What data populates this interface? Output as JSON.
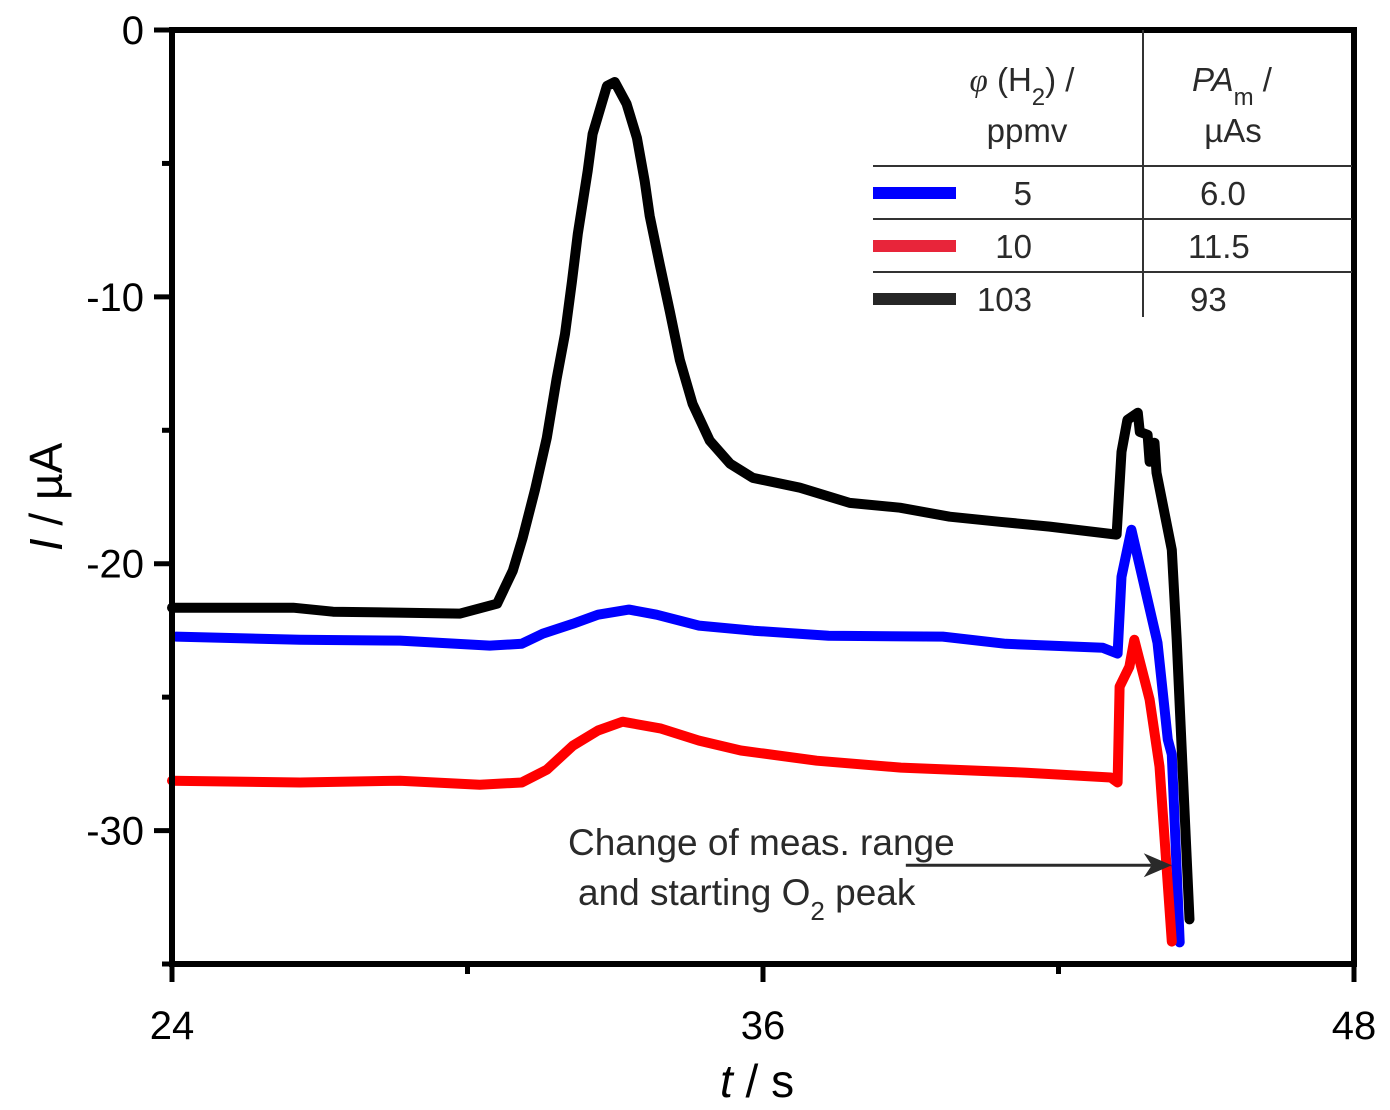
{
  "chart_data": {
    "type": "line",
    "title": "",
    "xlabel": {
      "var": "t",
      "unit": "s"
    },
    "ylabel": {
      "var": "I",
      "unit": "µA"
    },
    "xlim": [
      24,
      48
    ],
    "ylim": [
      -35,
      0
    ],
    "x_ticks": [
      24,
      36,
      48
    ],
    "x_tick_labels": [
      "24",
      "36",
      "48"
    ],
    "x_minor_ticks": [
      30,
      42
    ],
    "y_ticks": [
      0,
      -10,
      -20,
      -30
    ],
    "y_tick_labels": [
      "0",
      "-10",
      "-20",
      "-30"
    ],
    "y_minor_ticks": [
      -5,
      -15,
      -25,
      -35
    ],
    "grid": false,
    "legend": {
      "placement": "top-right",
      "header": {
        "col1_line1_var": "φ",
        "col1_line1_rest": " (H",
        "col1_line1_sub": "2",
        "col1_line1_end": ") /",
        "col1_line2": "ppmv",
        "col2_line1_var": "PA",
        "col2_line1_sub": "m",
        "col2_line1_end": " /",
        "col2_line2": "µAs"
      },
      "rows": [
        {
          "series": "blue",
          "concentration": "5",
          "peak_area": "6.0"
        },
        {
          "series": "red",
          "concentration": "10",
          "peak_area": "11.5"
        },
        {
          "series": "black",
          "concentration": "103",
          "peak_area": "93"
        }
      ]
    },
    "annotation": {
      "line1": "Change of meas. range",
      "line2_pre": "and starting O",
      "line2_sub": "2",
      "line2_post": " peak",
      "arrow_from": [
        38.9,
        -31.3
      ],
      "arrow_to": [
        44.3,
        -31.3
      ]
    },
    "series": [
      {
        "name": "5 ppmv",
        "color": "#0000ff",
        "x": [
          24.08,
          26.6,
          28.63,
          30.45,
          31.1,
          31.53,
          32.14,
          32.65,
          33.28,
          33.84,
          34.7,
          35.81,
          37.33,
          39.65,
          40.93,
          42.9,
          43.2,
          43.28,
          43.48,
          44.01,
          44.22,
          44.3,
          44.46
        ],
        "y": [
          -22.73,
          -22.85,
          -22.88,
          -23.07,
          -23.0,
          -22.62,
          -22.25,
          -21.91,
          -21.72,
          -21.91,
          -22.32,
          -22.51,
          -22.7,
          -22.73,
          -23.0,
          -23.15,
          -23.37,
          -20.49,
          -18.73,
          -22.96,
          -26.59,
          -27.15,
          -34.19
        ]
      },
      {
        "name": "10 ppmv",
        "color": "#ff0000",
        "x": [
          24.0,
          26.6,
          28.63,
          30.25,
          31.1,
          31.61,
          32.14,
          32.65,
          33.15,
          33.93,
          34.7,
          35.55,
          37.09,
          38.8,
          41.35,
          43.06,
          43.2,
          43.24,
          43.44,
          43.54,
          43.85,
          44.05,
          44.3
        ],
        "y": [
          -28.13,
          -28.2,
          -28.13,
          -28.28,
          -28.2,
          -27.72,
          -26.82,
          -26.25,
          -25.92,
          -26.18,
          -26.63,
          -27.0,
          -27.38,
          -27.64,
          -27.83,
          -28.01,
          -28.2,
          -24.61,
          -23.86,
          -22.85,
          -25.09,
          -27.6,
          -34.16
        ]
      },
      {
        "name": "103 ppmv",
        "color": "#000000",
        "x": [
          24.0,
          26.46,
          27.27,
          29.85,
          30.6,
          30.92,
          31.12,
          31.37,
          31.61,
          31.81,
          31.98,
          32.12,
          32.24,
          32.44,
          32.54,
          32.83,
          32.99,
          33.23,
          33.44,
          33.6,
          33.7,
          33.9,
          34.11,
          34.31,
          34.57,
          34.92,
          35.33,
          35.79,
          36.75,
          37.76,
          38.78,
          39.79,
          40.81,
          41.82,
          43.18,
          43.28,
          43.4,
          43.61,
          43.65,
          43.81,
          43.85,
          43.95,
          43.99,
          44.3,
          44.4,
          44.66
        ],
        "y": [
          -21.65,
          -21.65,
          -21.8,
          -21.87,
          -21.5,
          -20.26,
          -19.03,
          -17.23,
          -15.28,
          -13.07,
          -11.39,
          -9.44,
          -7.64,
          -5.28,
          -3.9,
          -2.1,
          -1.95,
          -2.77,
          -4.04,
          -5.69,
          -6.97,
          -8.76,
          -10.56,
          -12.36,
          -14.01,
          -15.39,
          -16.25,
          -16.78,
          -17.15,
          -17.72,
          -17.9,
          -18.24,
          -18.43,
          -18.61,
          -18.91,
          -15.81,
          -14.61,
          -14.34,
          -15.06,
          -15.17,
          -16.18,
          -15.47,
          -16.59,
          -19.48,
          -22.85,
          -33.33
        ]
      }
    ]
  }
}
